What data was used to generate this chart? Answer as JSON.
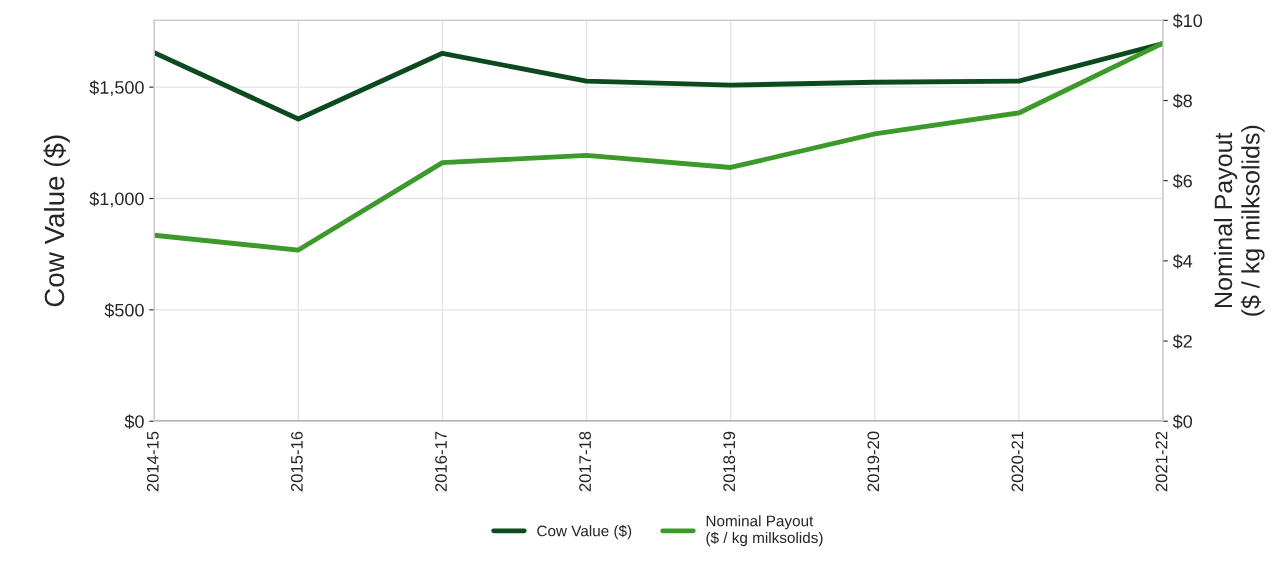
{
  "chart_data": {
    "type": "line",
    "ylabel": "Cow Value ($)",
    "y2label": "Nominal Payout\n($ / kg milksolids)",
    "categories": [
      "2014-15",
      "2015-16",
      "2016-17",
      "2017-18",
      "2018-19",
      "2019-20",
      "2020-21",
      "2021-22"
    ],
    "series": [
      {
        "name": "Cow Value ($)",
        "color": "#0b4a1e",
        "values": [
          1655,
          1357,
          1652,
          1527,
          1509,
          1522,
          1527,
          1696
        ]
      },
      {
        "name": "Nominal Payout\n($ / kg milksolids)",
        "color": "#3b9a2a",
        "axis": "y2",
        "values": [
          4.64,
          4.27,
          6.45,
          6.63,
          6.33,
          7.17,
          7.69,
          9.43
        ]
      }
    ],
    "ylim": [
      0,
      1800
    ],
    "yticks": [
      {
        "value": 0,
        "label": "$0"
      },
      {
        "value": 500,
        "label": "$500"
      },
      {
        "value": 1000,
        "label": "$1,000"
      },
      {
        "value": 1500,
        "label": "$1,500"
      }
    ],
    "y2lim": [
      0,
      10
    ],
    "y2ticks": [
      {
        "value": 0,
        "label": "$0"
      },
      {
        "value": 2,
        "label": "$2"
      },
      {
        "value": 4,
        "label": "$4"
      },
      {
        "value": 6,
        "label": "$6"
      },
      {
        "value": 8,
        "label": "$8"
      },
      {
        "value": 10,
        "label": "$10"
      }
    ],
    "grid": true,
    "legend": "bottom",
    "line_style": "solid"
  }
}
